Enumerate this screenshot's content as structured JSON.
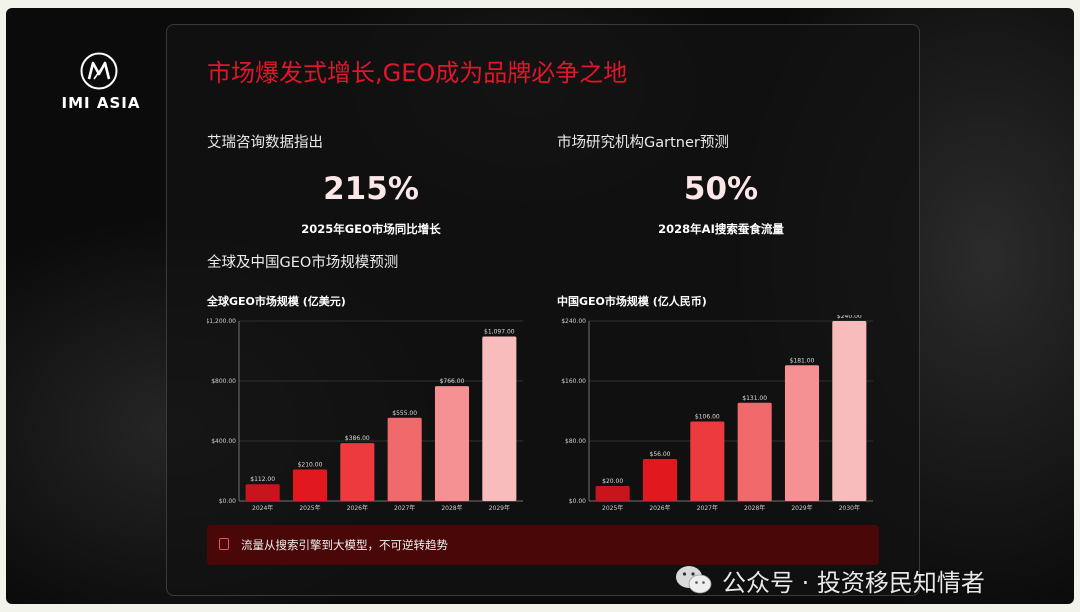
{
  "logo": {
    "text": "IMI ASIA"
  },
  "title": "市场爆发式增长,GEO成为品牌必争之地",
  "stats": [
    {
      "heading": "艾瑞咨询数据指出",
      "value": "215%",
      "caption": "2025年GEO市场同比增长"
    },
    {
      "heading": "市场研究机构Gartner预测",
      "value": "50%",
      "caption": "2028年AI搜索蚕食流量"
    }
  ],
  "section_heading": "全球及中国GEO市场规模预测",
  "chart_data": [
    {
      "type": "bar",
      "title": "全球GEO市场规模 (亿美元)",
      "categories": [
        "2024年",
        "2025年",
        "2026年",
        "2027年",
        "2028年",
        "2029年"
      ],
      "values": [
        112,
        210,
        386,
        555,
        766,
        1097
      ],
      "data_labels": [
        "$112.00",
        "$210.00",
        "$386.00",
        "$555.00",
        "$766.00",
        "$1,097.00"
      ],
      "ylim": [
        0,
        1200
      ],
      "y_ticks": [
        0,
        400,
        800,
        1200
      ],
      "y_tick_labels": [
        "$0.00",
        "$400.00",
        "$800.00",
        "$1,200.00"
      ],
      "grid": true,
      "colors": [
        "#c8141c",
        "#e1191f",
        "#ec3a3e",
        "#f06a6c",
        "#f59193",
        "#f8bcbd"
      ]
    },
    {
      "type": "bar",
      "title": "中国GEO市场规模 (亿人民币)",
      "categories": [
        "2025年",
        "2026年",
        "2027年",
        "2028年",
        "2029年",
        "2030年"
      ],
      "values": [
        20,
        56,
        106,
        131,
        181,
        240
      ],
      "data_labels": [
        "$20.00",
        "$56.00",
        "$106.00",
        "$131.00",
        "$181.00",
        "$240.00"
      ],
      "ylim": [
        0,
        240
      ],
      "y_ticks": [
        0,
        80,
        160,
        240
      ],
      "y_tick_labels": [
        "$0.00",
        "$80.00",
        "$160.00",
        "$240.00"
      ],
      "grid": true,
      "colors": [
        "#c8141c",
        "#e1191f",
        "#ec3a3e",
        "#f06a6c",
        "#f59193",
        "#f8bcbd"
      ]
    }
  ],
  "footer": {
    "text": "流量从搜索引擎到大模型，不可逆转趋势",
    "icon": "note-icon"
  },
  "watermark": {
    "text": "公众号 · 投资移民知情者",
    "icon": "wechat-icon"
  }
}
